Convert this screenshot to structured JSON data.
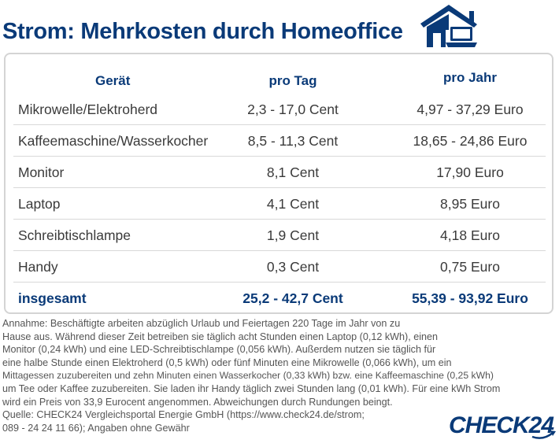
{
  "title": "Strom: Mehrkosten durch Homeoffice",
  "colors": {
    "brand_blue": "#0a3a78",
    "text": "#3a3a3a",
    "notes": "#555555",
    "border": "#d4d4d4"
  },
  "icons": {
    "header_icon": "house-with-laptop-icon"
  },
  "chart_data": {
    "type": "table",
    "columns": [
      "Gerät",
      "pro Tag",
      "pro Jahr"
    ],
    "rows": [
      [
        "Mikrowelle/Elektroherd",
        "2,3 - 17,0 Cent",
        "4,97 - 37,29 Euro"
      ],
      [
        "Kaffeemaschine/Wasserkocher",
        "8,5 - 11,3 Cent",
        "18,65 - 24,86 Euro"
      ],
      [
        "Monitor",
        "8,1 Cent",
        "17,90 Euro"
      ],
      [
        "Laptop",
        "4,1 Cent",
        "8,95 Euro"
      ],
      [
        "Schreibtischlampe",
        "1,9 Cent",
        "4,18 Euro"
      ],
      [
        "Handy",
        "0,3 Cent",
        "0,75 Euro"
      ]
    ],
    "total": [
      "insgesamt",
      "25,2 - 42,7 Cent",
      "55,39 - 93,92 Euro"
    ]
  },
  "notes": {
    "lines": [
      "Annahme: Beschäftigte arbeiten abzüglich Urlaub und Feiertagen 220 Tage im Jahr von zu",
      "Hause aus. Während dieser Zeit betreiben sie täglich acht Stunden einen Laptop (0,12 kWh), einen",
      "Monitor (0,24 kWh) und eine LED-Schreibtischlampe (0,056 kWh). Außerdem nutzen sie täglich für",
      "eine halbe Stunde einen Elektroherd (0,5 kWh) oder fünf Minuten eine Mikrowelle (0,066 kWh), um ein",
      "Mittagessen zuzubereiten und zehn Minuten einen Wasserkocher (0,33 kWh) bzw. eine Kaffeemaschine (0,25 kWh)",
      "um Tee oder Kaffee zuzubereiten. Sie laden ihr Handy täglich zwei Stunden lang (0,01 kWh). Für eine kWh Strom",
      "wird ein Preis von 33,9 Eurocent angenommen. Abweichungen durch Rundungen beingt.",
      "Quelle: CHECK24 Vergleichsportal Energie GmbH (https://www.check24.de/strom;",
      "089 - 24 24 11 66); Angaben ohne Gewähr"
    ]
  },
  "logo": {
    "text": "CHECK24"
  }
}
